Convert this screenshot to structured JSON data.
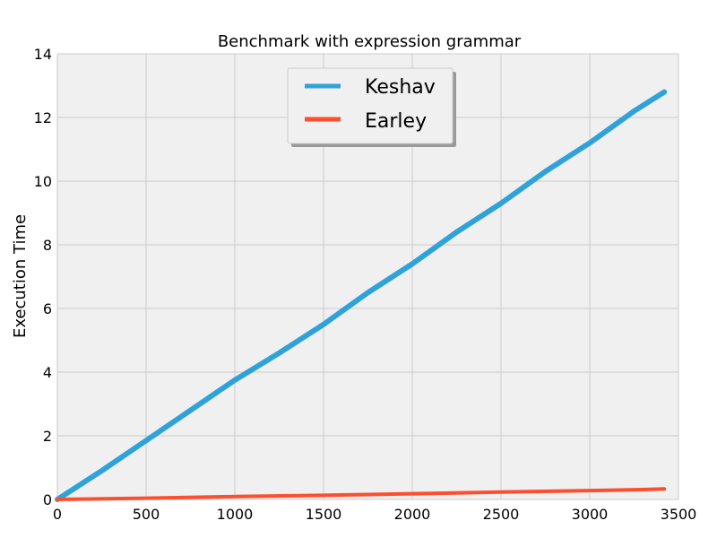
{
  "chart_data": {
    "type": "line",
    "title": "Benchmark with expression grammar",
    "xlabel": "",
    "ylabel": "Execution Time",
    "xlim": [
      0,
      3500
    ],
    "ylim": [
      0,
      14
    ],
    "x_ticks": [
      0,
      500,
      1000,
      1500,
      2000,
      2500,
      3000,
      3500
    ],
    "y_ticks": [
      0,
      2,
      4,
      6,
      8,
      10,
      12,
      14
    ],
    "grid": true,
    "legend_position": "top-center",
    "series": [
      {
        "name": "Keshav",
        "color": "#30a2da",
        "x": [
          0,
          250,
          500,
          750,
          1000,
          1250,
          1500,
          1750,
          2000,
          2250,
          2500,
          2750,
          3000,
          3250,
          3420
        ],
        "y": [
          0,
          0.9,
          1.85,
          2.8,
          3.75,
          4.6,
          5.5,
          6.5,
          7.4,
          8.4,
          9.3,
          10.3,
          11.2,
          12.2,
          12.8
        ]
      },
      {
        "name": "Earley",
        "color": "#fc4f30",
        "x": [
          0,
          500,
          1000,
          1500,
          2000,
          2500,
          3000,
          3300,
          3420
        ],
        "y": [
          0,
          0.04,
          0.09,
          0.13,
          0.18,
          0.23,
          0.28,
          0.31,
          0.33
        ]
      }
    ]
  }
}
